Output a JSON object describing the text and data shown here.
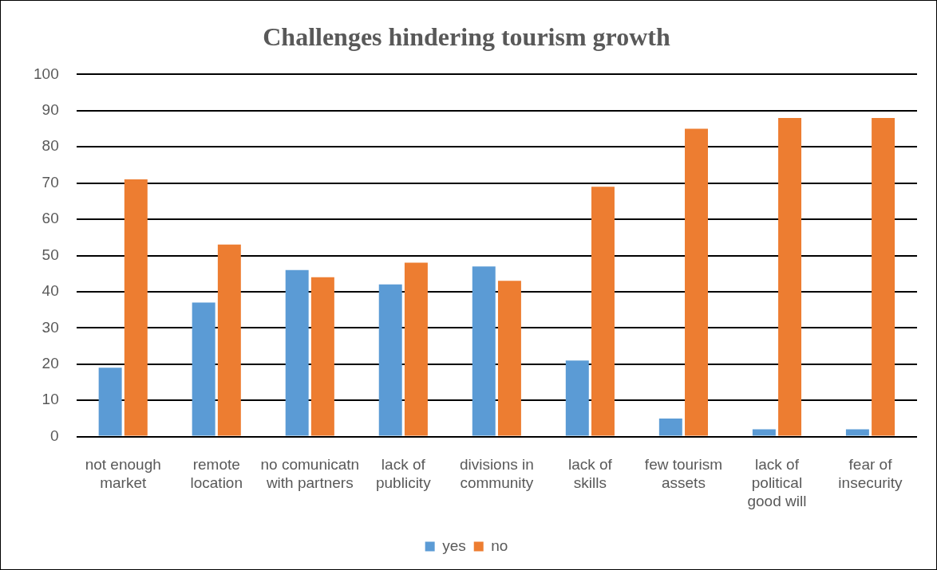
{
  "chart_data": {
    "type": "bar",
    "title": "Challenges hindering tourism growth",
    "categories": [
      "not enough market",
      "remote location",
      "no comunicatn with partners",
      "lack of publicity",
      "divisions in community",
      "lack of skills",
      "few tourism assets",
      "lack of political good will",
      "fear of insecurity"
    ],
    "series": [
      {
        "name": "yes",
        "color": "#5b9bd5",
        "values": [
          19,
          37,
          46,
          42,
          47,
          21,
          5,
          2,
          2
        ]
      },
      {
        "name": "no",
        "color": "#ed7d31",
        "values": [
          71,
          53,
          44,
          48,
          43,
          69,
          85,
          88,
          88
        ]
      }
    ],
    "ylim": [
      0,
      100
    ],
    "yticks": [
      0,
      10,
      20,
      30,
      40,
      50,
      60,
      70,
      80,
      90,
      100
    ],
    "grid": "y",
    "legend": "bottom"
  }
}
